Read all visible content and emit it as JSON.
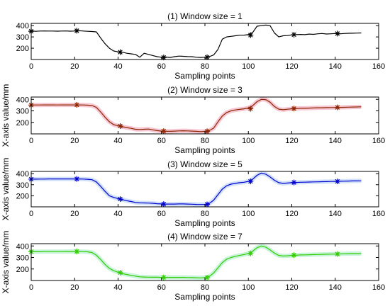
{
  "chart_data": [
    {
      "type": "line",
      "title": "(1) Window size = 1",
      "xlabel": "Sampling points",
      "xlim": [
        0,
        160
      ],
      "ylim": [
        100,
        420
      ],
      "xticks": [
        "0",
        "20",
        "40",
        "60",
        "80",
        "100",
        "120",
        "140",
        "160"
      ],
      "yticks": [
        "200",
        "300",
        "400"
      ],
      "color": "#000000",
      "glow": "",
      "x": [
        0,
        2,
        4,
        6,
        8,
        10,
        12,
        14,
        16,
        18,
        20,
        22,
        24,
        26,
        28,
        30,
        32,
        34,
        36,
        38,
        40,
        42,
        44,
        46,
        48,
        50,
        52,
        54,
        56,
        58,
        60,
        62,
        64,
        66,
        68,
        70,
        72,
        74,
        76,
        78,
        80,
        82,
        84,
        86,
        88,
        90,
        92,
        94,
        96,
        98,
        100,
        102,
        104,
        106,
        108,
        110,
        112,
        114,
        116,
        118,
        120,
        122,
        124,
        126,
        128,
        130,
        132,
        134,
        136,
        138,
        140,
        142,
        144,
        146,
        148,
        150,
        152
      ],
      "y": [
        355,
        350,
        352,
        353,
        352,
        352,
        351,
        352,
        353,
        351,
        352,
        355,
        352,
        350,
        348,
        345,
        290,
        240,
        200,
        175,
        168,
        165,
        155,
        150,
        145,
        120,
        155,
        145,
        135,
        125,
        120,
        122,
        118,
        125,
        130,
        128,
        126,
        125,
        120,
        118,
        120,
        125,
        140,
        190,
        280,
        300,
        305,
        310,
        315,
        316,
        320,
        340,
        395,
        400,
        405,
        400,
        335,
        300,
        310,
        312,
        318,
        320,
        322,
        320,
        325,
        323,
        328,
        330,
        326,
        328,
        330,
        327,
        330,
        332,
        333,
        334,
        335
      ],
      "markers_x": [
        0,
        21,
        41,
        61,
        81,
        101,
        121,
        141
      ],
      "markers_y": [
        350,
        355,
        165,
        118,
        120,
        316,
        320,
        330
      ]
    },
    {
      "type": "line",
      "title": "(2) Window size = 3",
      "xlabel": "Sampling points",
      "ylabel": "X-axis value/mm",
      "xlim": [
        0,
        160
      ],
      "ylim": [
        100,
        420
      ],
      "xticks": [
        "0",
        "20",
        "40",
        "60",
        "80",
        "100",
        "120",
        "140",
        "160"
      ],
      "yticks": [
        "200",
        "300",
        "400"
      ],
      "color": "#8b2500",
      "glow": "#f4b8c8",
      "x": [
        0,
        2,
        4,
        6,
        8,
        10,
        12,
        14,
        16,
        18,
        20,
        22,
        24,
        26,
        28,
        30,
        32,
        34,
        36,
        38,
        40,
        42,
        44,
        46,
        48,
        50,
        52,
        54,
        56,
        58,
        60,
        62,
        64,
        66,
        68,
        70,
        72,
        74,
        76,
        78,
        80,
        82,
        84,
        86,
        88,
        90,
        92,
        94,
        96,
        98,
        100,
        102,
        104,
        106,
        108,
        110,
        112,
        114,
        116,
        118,
        120,
        122,
        124,
        126,
        128,
        130,
        132,
        134,
        136,
        138,
        140,
        142,
        144,
        146,
        148,
        150,
        152
      ],
      "y": [
        352,
        351,
        351,
        352,
        352,
        352,
        351,
        352,
        352,
        352,
        352,
        352,
        351,
        349,
        346,
        330,
        290,
        245,
        205,
        180,
        170,
        162,
        155,
        148,
        140,
        138,
        140,
        142,
        135,
        128,
        124,
        122,
        122,
        124,
        126,
        127,
        126,
        124,
        122,
        120,
        122,
        128,
        150,
        205,
        255,
        285,
        300,
        308,
        313,
        318,
        325,
        345,
        380,
        400,
        398,
        375,
        338,
        315,
        310,
        314,
        318,
        320,
        322,
        322,
        324,
        325,
        327,
        327,
        328,
        329,
        329,
        330,
        331,
        332,
        333,
        334,
        335
      ],
      "markers_x": [
        0,
        21,
        41,
        61,
        81,
        101,
        121,
        141
      ],
      "markers_y": [
        350,
        352,
        168,
        124,
        122,
        318,
        320,
        330
      ]
    },
    {
      "type": "line",
      "title": "(3) Window size = 5",
      "xlabel": "Sampling points",
      "ylabel": "X-axis value/mm",
      "xlim": [
        0,
        160
      ],
      "ylim": [
        100,
        420
      ],
      "xticks": [
        "0",
        "20",
        "40",
        "60",
        "80",
        "100",
        "120",
        "140",
        "160"
      ],
      "yticks": [
        "200",
        "300",
        "400"
      ],
      "color": "#0000cc",
      "glow": "#c4d8f8",
      "x": [
        0,
        2,
        4,
        6,
        8,
        10,
        12,
        14,
        16,
        18,
        20,
        22,
        24,
        26,
        28,
        30,
        32,
        34,
        36,
        38,
        40,
        42,
        44,
        46,
        48,
        50,
        52,
        54,
        56,
        58,
        60,
        62,
        64,
        66,
        68,
        70,
        72,
        74,
        76,
        78,
        80,
        82,
        84,
        86,
        88,
        90,
        92,
        94,
        96,
        98,
        100,
        102,
        104,
        106,
        108,
        110,
        112,
        114,
        116,
        118,
        120,
        122,
        124,
        126,
        128,
        130,
        132,
        134,
        136,
        138,
        140,
        142,
        144,
        146,
        148,
        150,
        152
      ],
      "y": [
        350,
        350,
        351,
        351,
        352,
        352,
        352,
        352,
        352,
        352,
        352,
        352,
        351,
        349,
        345,
        325,
        285,
        240,
        200,
        185,
        175,
        165,
        155,
        148,
        140,
        136,
        135,
        134,
        132,
        128,
        126,
        125,
        125,
        125,
        126,
        126,
        125,
        124,
        122,
        121,
        122,
        130,
        160,
        210,
        260,
        290,
        305,
        312,
        318,
        322,
        330,
        350,
        385,
        405,
        395,
        370,
        340,
        318,
        312,
        315,
        318,
        320,
        322,
        323,
        324,
        325,
        326,
        327,
        328,
        329,
        330,
        331,
        332,
        333,
        334,
        334,
        335
      ],
      "markers_x": [
        0,
        21,
        41,
        61,
        81,
        101,
        121,
        141
      ],
      "markers_y": [
        350,
        352,
        170,
        125,
        122,
        330,
        320,
        330
      ]
    },
    {
      "type": "line",
      "title": "(4) Window size = 7",
      "xlabel": "Sampling points",
      "ylabel": "X-axis value/mm",
      "xlim": [
        0,
        160
      ],
      "ylim": [
        100,
        420
      ],
      "xticks": [
        "0",
        "20",
        "40",
        "60",
        "80",
        "100",
        "120",
        "140",
        "160"
      ],
      "yticks": [
        "200",
        "300",
        "400"
      ],
      "color": "#33cc00",
      "glow": "#b8f0d0",
      "x": [
        0,
        2,
        4,
        6,
        8,
        10,
        12,
        14,
        16,
        18,
        20,
        22,
        24,
        26,
        28,
        30,
        32,
        34,
        36,
        38,
        40,
        42,
        44,
        46,
        48,
        50,
        52,
        54,
        56,
        58,
        60,
        62,
        64,
        66,
        68,
        70,
        72,
        74,
        76,
        78,
        80,
        82,
        84,
        86,
        88,
        90,
        92,
        94,
        96,
        98,
        100,
        102,
        104,
        106,
        108,
        110,
        112,
        114,
        116,
        118,
        120,
        122,
        124,
        126,
        128,
        130,
        132,
        134,
        136,
        138,
        140,
        142,
        144,
        146,
        148,
        150,
        152
      ],
      "y": [
        350,
        350,
        350,
        351,
        351,
        351,
        351,
        351,
        352,
        352,
        352,
        352,
        351,
        349,
        343,
        320,
        282,
        240,
        205,
        185,
        172,
        160,
        152,
        145,
        138,
        132,
        130,
        129,
        128,
        128,
        127,
        127,
        127,
        127,
        127,
        127,
        126,
        125,
        124,
        123,
        125,
        135,
        165,
        210,
        255,
        285,
        300,
        310,
        318,
        325,
        335,
        355,
        385,
        400,
        390,
        365,
        338,
        318,
        313,
        315,
        318,
        320,
        322,
        323,
        324,
        325,
        326,
        327,
        328,
        329,
        330,
        331,
        332,
        333,
        334,
        334,
        335
      ],
      "markers_x": [
        0,
        21,
        41,
        61,
        81,
        101,
        121,
        141
      ],
      "markers_y": [
        350,
        352,
        168,
        127,
        125,
        335,
        320,
        330
      ]
    }
  ]
}
